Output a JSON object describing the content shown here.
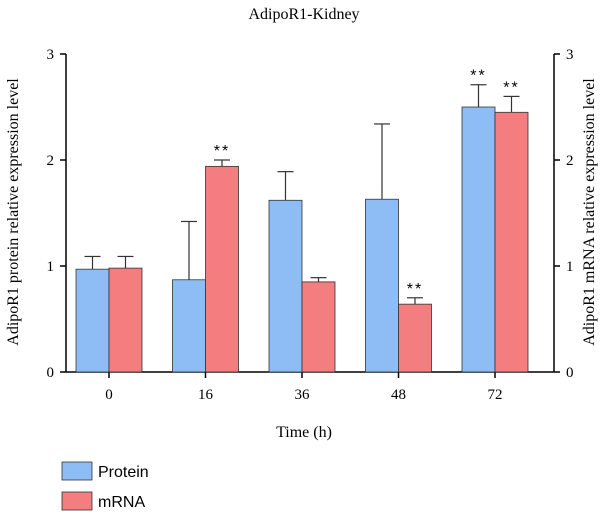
{
  "chart_data": {
    "type": "bar",
    "title": "AdipoR1-Kidney",
    "xlabel": "Time (h)",
    "ylabel": "AdipoR1 protein relative expression level",
    "ylabel_right": "AdipoR1 mRNA relative expression level",
    "categories": [
      "0",
      "16",
      "36",
      "48",
      "72"
    ],
    "ylim": [
      0,
      3
    ],
    "yticks": [
      "0",
      "1",
      "2",
      "3"
    ],
    "grid": false,
    "legend_placement": "bottom-left",
    "series": [
      {
        "name": "Protein",
        "color": "#8ebdf5",
        "values": [
          0.97,
          0.87,
          1.62,
          1.63,
          2.5
        ],
        "errors": [
          0.12,
          0.55,
          0.27,
          0.71,
          0.21
        ],
        "significance": [
          "",
          "",
          "",
          "",
          "**"
        ]
      },
      {
        "name": "mRNA",
        "color": "#f47d80",
        "values": [
          0.98,
          1.94,
          0.85,
          0.64,
          2.45
        ],
        "errors": [
          0.11,
          0.06,
          0.04,
          0.06,
          0.15
        ],
        "significance": [
          "",
          "**",
          "",
          "**",
          "**"
        ]
      }
    ]
  }
}
